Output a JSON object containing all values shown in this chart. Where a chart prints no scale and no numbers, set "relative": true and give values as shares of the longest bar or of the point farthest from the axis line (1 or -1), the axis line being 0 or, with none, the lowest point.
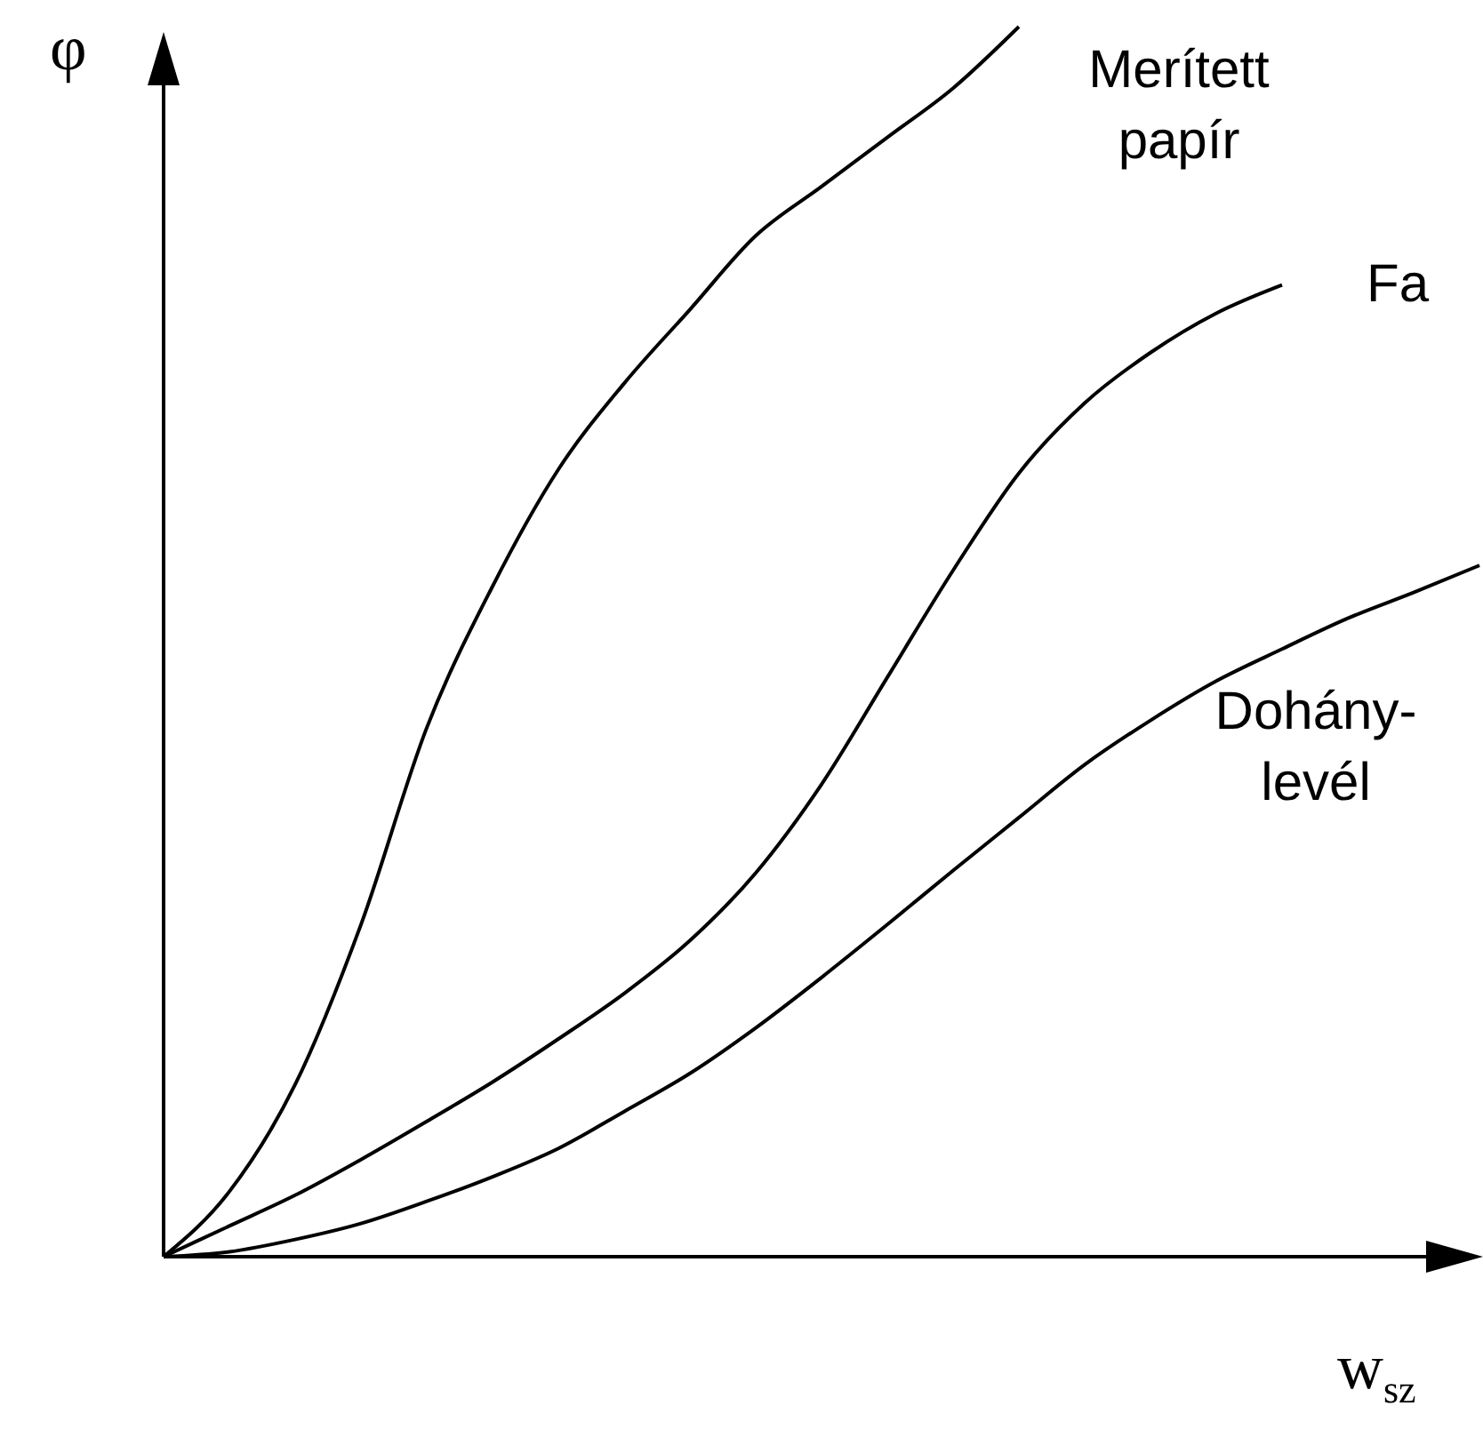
{
  "chart_data": {
    "type": "line",
    "relative": true,
    "ylabel": "φ",
    "xlabel": "w$_{sz}$",
    "grid": false,
    "line_style": "solid",
    "categories": [
      null,
      null,
      null,
      null,
      null,
      null,
      null,
      null,
      null,
      null,
      null,
      null,
      null,
      null,
      null,
      null,
      null,
      null,
      null,
      null,
      null
    ],
    "series": [
      {
        "name": "Merített\npapír",
        "color": "#000000",
        "values": [
          0,
          0.053,
          0.14,
          0.27,
          0.43,
          0.545,
          0.64,
          0.71,
          0.77,
          0.83,
          0.87,
          0.91,
          0.95,
          1,
          null,
          null,
          null,
          null,
          null,
          null,
          null
        ]
      },
      {
        "name": "Fa",
        "color": "#000000",
        "values": [
          0,
          0.025,
          0.05,
          0.079,
          0.11,
          0.142,
          0.177,
          0.214,
          0.257,
          0.312,
          0.384,
          0.471,
          0.558,
          0.637,
          0.694,
          0.735,
          0.767,
          0.79,
          null,
          null,
          null
        ]
      },
      {
        "name": "Dohány-\nlevél",
        "color": "#000000",
        "values": [
          0,
          0.004,
          0.014,
          0.027,
          0.045,
          0.065,
          0.088,
          0.118,
          0.149,
          0.186,
          0.227,
          0.27,
          0.314,
          0.357,
          0.4,
          0.436,
          0.468,
          0.494,
          0.519,
          0.54,
          0.562
        ]
      }
    ]
  }
}
